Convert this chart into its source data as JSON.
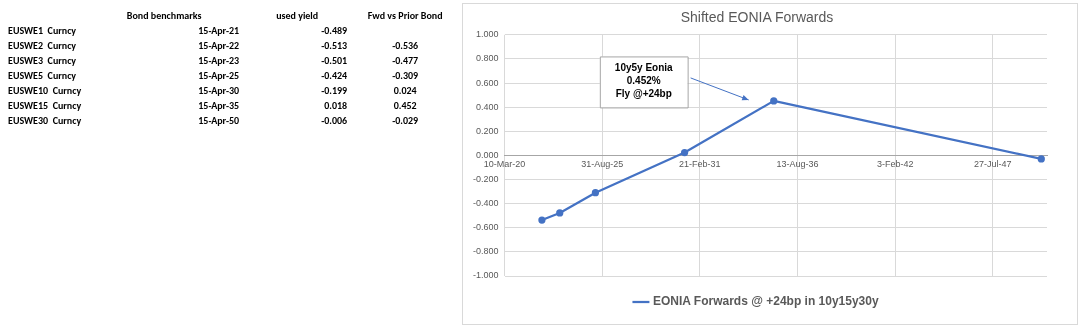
{
  "chart_data": [
    {
      "type": "other",
      "categories": [
        "EUSWE1  Curncy",
        "EUSWE2  Curncy",
        "EUSWE3  Curncy",
        "EUSWE5  Curncy",
        "EUSWE10  Curncy",
        "EUSWE15  Curncy",
        "EUSWE30  Curncy"
      ],
      "series": [
        {
          "name": "Bond benchmarks",
          "values": [
            null,
            null,
            null,
            null,
            null,
            null,
            null
          ],
          "value_labels": [
            "15-Apr-21",
            "15-Apr-22",
            "15-Apr-23",
            "15-Apr-25",
            "15-Apr-30",
            "15-Apr-35",
            "15-Apr-50"
          ]
        },
        {
          "name": "used yield",
          "values": [
            -0.489,
            -0.513,
            -0.501,
            -0.424,
            -0.199,
            0.018,
            -0.006
          ]
        },
        {
          "name": "Fwd vs Prior Bond",
          "values": [
            null,
            -0.536,
            -0.477,
            -0.309,
            0.024,
            0.452,
            -0.029
          ]
        }
      ],
      "data_labels": true
    },
    {
      "type": "line",
      "title": "Shifted EONIA Forwards",
      "x": [
        "2022-04-15",
        "2023-04-15",
        "2025-04-15",
        "2030-04-15",
        "2035-04-15",
        "2050-04-15"
      ],
      "series": [
        {
          "name": "EONIA Forwards @ +24bp in 10y15y30y",
          "color": "#4472c4",
          "values": [
            -0.536,
            -0.477,
            -0.309,
            0.024,
            0.452,
            -0.029
          ]
        }
      ],
      "xlim": [
        "2020-03-10",
        "2050-08-10"
      ],
      "xticks": [
        {
          "value": "2020-03-10",
          "label": "10-Mar-20"
        },
        {
          "value": "2025-08-31",
          "label": "31-Aug-25"
        },
        {
          "value": "2031-02-21",
          "label": "21-Feb-31"
        },
        {
          "value": "2036-08-13",
          "label": "13-Aug-36"
        },
        {
          "value": "2042-02-03",
          "label": "3-Feb-42"
        },
        {
          "value": "2047-07-27",
          "label": "27-Jul-47"
        }
      ],
      "ylim": [
        -1,
        1
      ],
      "yticks": [
        {
          "value": -1,
          "label": "-1.000"
        },
        {
          "value": -0.8,
          "label": "-0.800"
        },
        {
          "value": -0.6,
          "label": "-0.600"
        },
        {
          "value": -0.4,
          "label": "-0.400"
        },
        {
          "value": -0.2,
          "label": "-0.200"
        },
        {
          "value": 0,
          "label": "0.000"
        },
        {
          "value": 0.2,
          "label": "0.200"
        },
        {
          "value": 0.4,
          "label": "0.400"
        },
        {
          "value": 0.6,
          "label": "0.600"
        },
        {
          "value": 0.8,
          "label": "0.800"
        },
        {
          "value": 1,
          "label": "1.000"
        }
      ],
      "grid": true,
      "legend": "bottom",
      "marker": "circle",
      "line_style": "solid",
      "annotations": [
        "10y5y Eonia\n0.452%\nFly @+24bp"
      ]
    }
  ]
}
